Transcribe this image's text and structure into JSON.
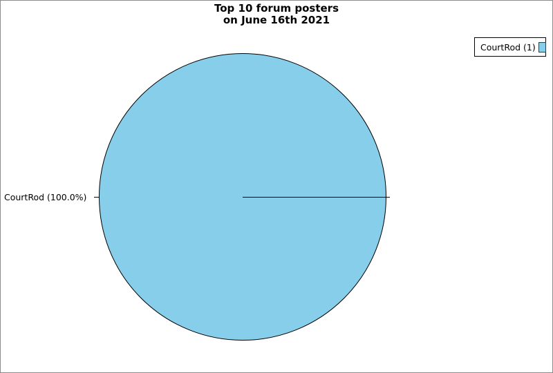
{
  "chart_data": {
    "type": "pie",
    "title": "Top 10 forum posters",
    "subtitle": "on June 16th 2021",
    "categories": [
      "CourtRod"
    ],
    "values": [
      1
    ],
    "slices": [
      {
        "label": "CourtRod",
        "value": 1,
        "percent": 100.0,
        "callout": "CourtRod (100.0%)",
        "color": "#87ceeb"
      }
    ],
    "legend": {
      "position": "top-right",
      "entries": [
        {
          "label": "CourtRod (1)",
          "swatch_color": "#87ceeb"
        }
      ]
    },
    "layout_hints": {
      "grid": false,
      "background": "#ffffff",
      "frame_border_color": "#8b8b8b",
      "slice_outline_color": "#000000",
      "legend_swatch_border_color": "#223399",
      "slice_start_angle_deg": 0,
      "label_position": "outside-left"
    }
  }
}
